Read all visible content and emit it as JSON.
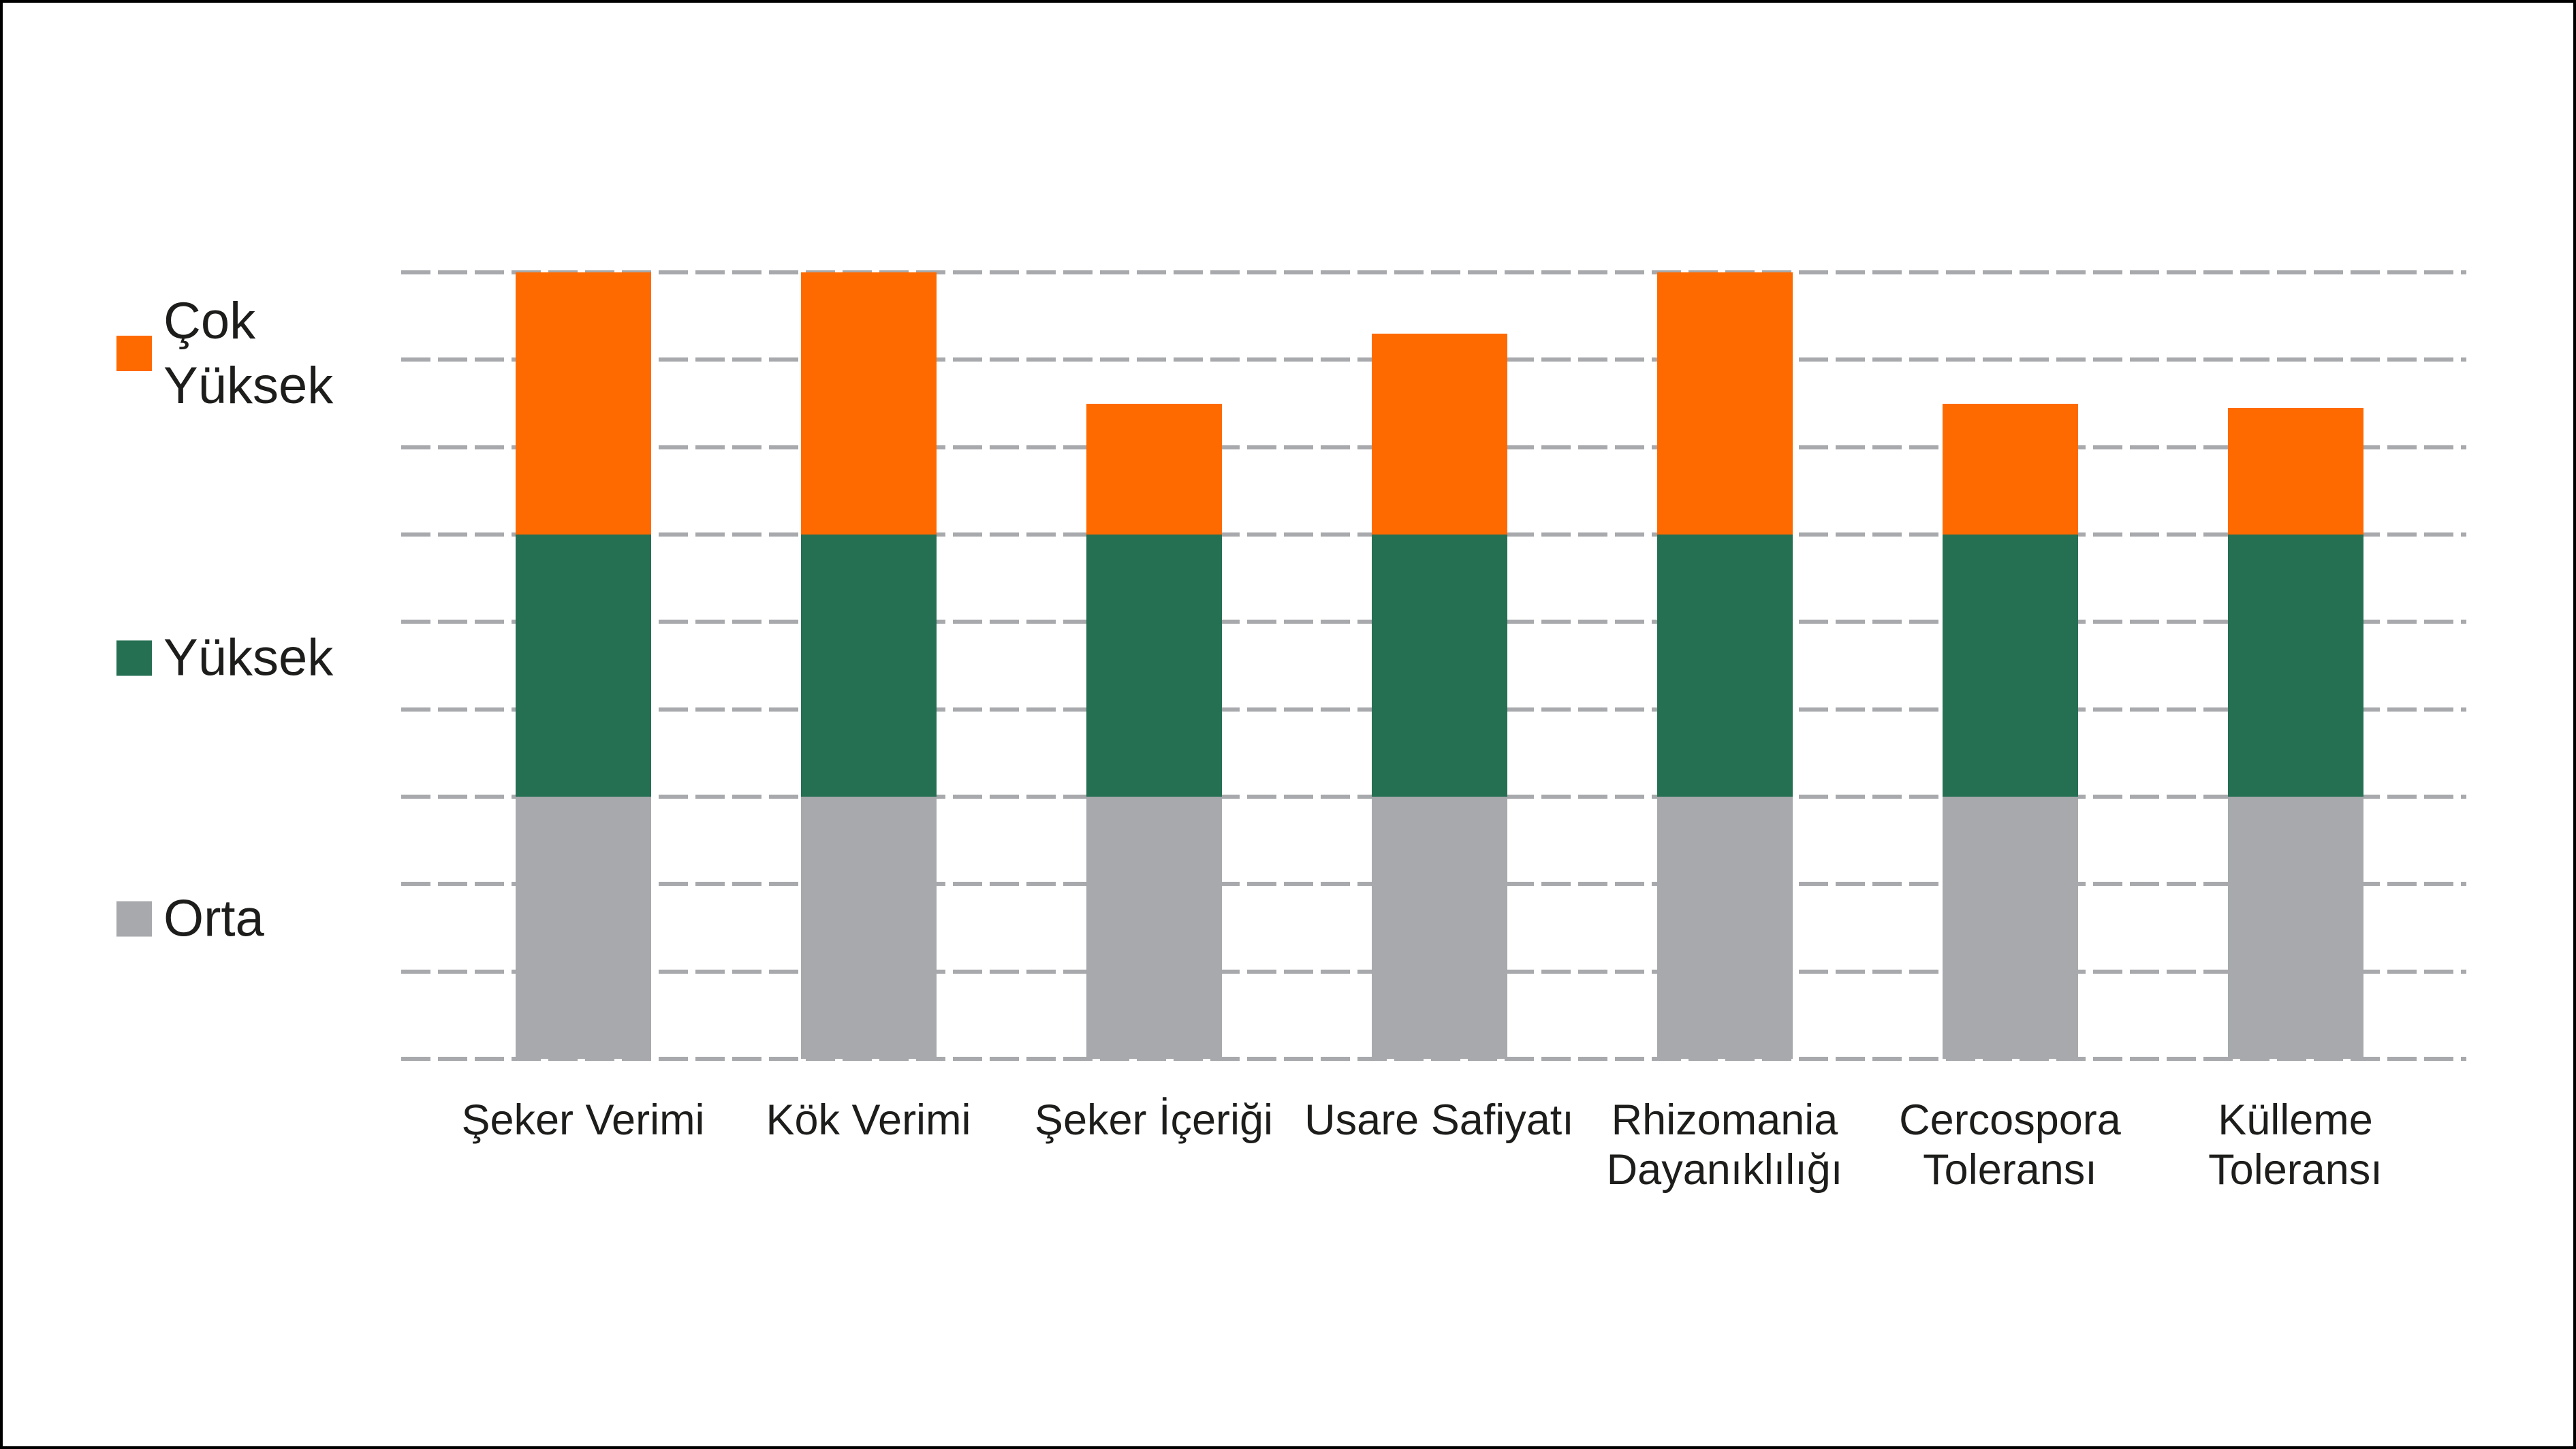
{
  "chart_data": {
    "type": "bar",
    "stacked": true,
    "title": "",
    "xlabel": "",
    "ylabel": "",
    "categories": [
      "Şeker Verimi",
      "Kök Verimi",
      "Şeker İçeriği",
      "Usare Safiyatı",
      "Rhizomania Dayanıklılığı",
      "Cercospora Toleransı",
      "Külleme Toleransı"
    ],
    "series": [
      {
        "name": "Orta",
        "color": "#A7A9AC",
        "values": [
          3,
          3,
          3,
          3,
          3,
          3,
          3
        ]
      },
      {
        "name": "Yüksek",
        "color": "#256F53",
        "values": [
          3,
          3,
          3,
          3,
          3,
          3,
          3
        ]
      },
      {
        "name": "Çok Yüksek",
        "color": "#FF6A00",
        "values": [
          3,
          3,
          1.5,
          2.3,
          3,
          1.5,
          1.45
        ]
      }
    ],
    "totals": [
      9,
      9,
      7.5,
      8.3,
      9,
      7.5,
      7.45
    ],
    "ylim": [
      0,
      9
    ],
    "grid": {
      "horizontal_lines": 10,
      "style": "dashed",
      "color": "#A7A9AC"
    },
    "legend": {
      "position": "left",
      "items": [
        {
          "label": "Çok\nYüksek",
          "color": "#FF6A00"
        },
        {
          "label": "Yüksek",
          "color": "#256F53"
        },
        {
          "label": "Orta",
          "color": "#A7A9AC"
        }
      ]
    }
  },
  "colors": {
    "background": "#FFFFFF",
    "frame": "#000000",
    "text": "#1D1D1B",
    "gridline": "#A7A9AC"
  }
}
